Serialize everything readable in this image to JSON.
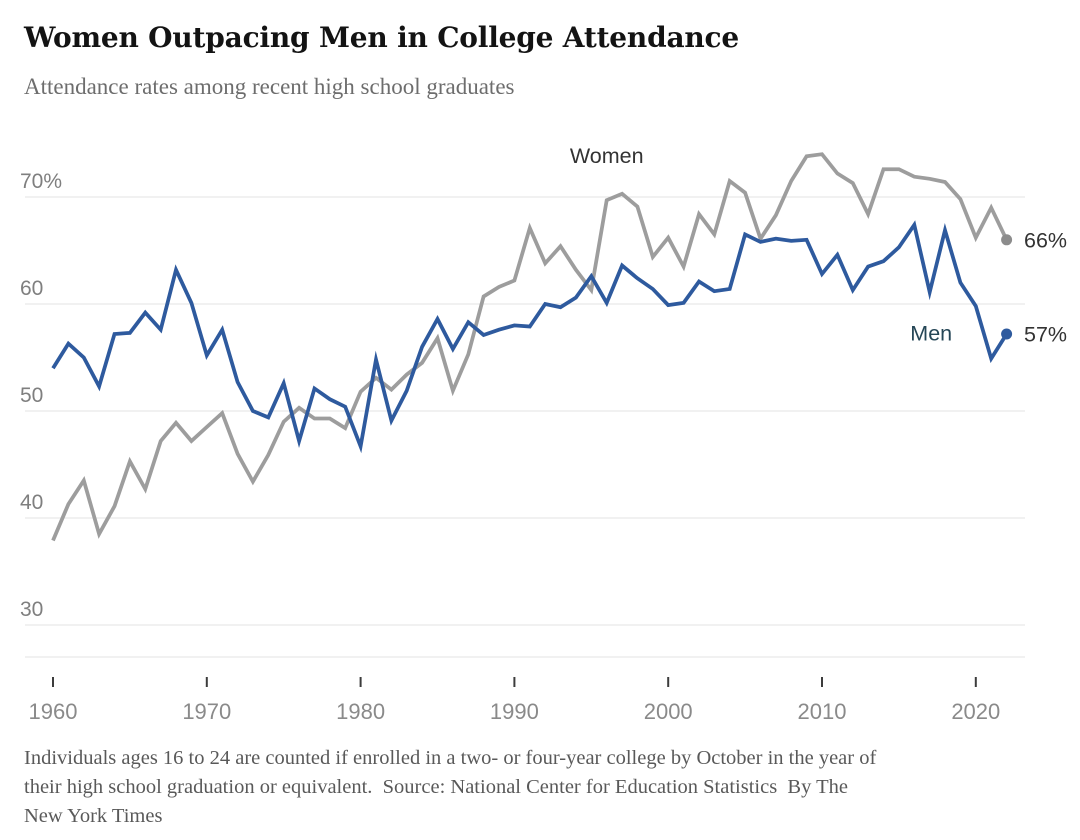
{
  "header": {
    "title": "Women Outpacing Men in College Attendance",
    "subtitle": "Attendance rates among recent high school graduates"
  },
  "footer": {
    "caption_lines": [
      "Individuals ages 16 to 24 are counted if enrolled in a two- or four-year college by October in the year of",
      "their high school graduation or equivalent.  Source: National Center for Education Statistics  By The",
      "New York Times"
    ]
  },
  "chart_data": {
    "type": "line",
    "title": "Women Outpacing Men in College Attendance",
    "subtitle": "Attendance rates among recent high school graduates",
    "xlabel": "",
    "ylabel": "",
    "grid": true,
    "legend_position": "inline-annotations",
    "xlim": [
      1958,
      2024
    ],
    "ylim": [
      27,
      76
    ],
    "xticks": [
      1960,
      1970,
      1980,
      1990,
      2000,
      2010,
      2020
    ],
    "yticks": [
      30,
      40,
      50,
      60,
      70
    ],
    "ytick_labels": [
      "30",
      "40",
      "50",
      "60",
      "70%"
    ],
    "x": [
      1960,
      1961,
      1962,
      1963,
      1964,
      1965,
      1966,
      1967,
      1968,
      1969,
      1970,
      1971,
      1972,
      1973,
      1974,
      1975,
      1976,
      1977,
      1978,
      1979,
      1980,
      1981,
      1982,
      1983,
      1984,
      1985,
      1986,
      1987,
      1988,
      1989,
      1990,
      1991,
      1992,
      1993,
      1994,
      1995,
      1996,
      1997,
      1998,
      1999,
      2000,
      2001,
      2002,
      2003,
      2004,
      2005,
      2006,
      2007,
      2008,
      2009,
      2010,
      2011,
      2012,
      2013,
      2014,
      2015,
      2016,
      2017,
      2018,
      2019,
      2020,
      2021,
      2022
    ],
    "series": [
      {
        "name": "Women",
        "color": "#9d9d9d",
        "dot_color": "#8c8c8c",
        "end_label": "66%",
        "values": [
          37.9,
          41.3,
          43.5,
          38.5,
          41.1,
          45.3,
          42.7,
          47.2,
          48.9,
          47.2,
          48.5,
          49.8,
          46.0,
          43.4,
          45.9,
          49.0,
          50.3,
          49.3,
          49.3,
          48.4,
          51.8,
          53.1,
          52.0,
          53.4,
          54.5,
          56.8,
          51.9,
          55.3,
          60.7,
          61.6,
          62.2,
          67.1,
          63.8,
          65.4,
          63.2,
          61.3,
          69.7,
          70.3,
          69.1,
          64.4,
          66.2,
          63.5,
          68.4,
          66.5,
          71.5,
          70.4,
          66.1,
          68.3,
          71.5,
          73.8,
          74.0,
          72.2,
          71.3,
          68.4,
          72.6,
          72.6,
          71.9,
          71.7,
          71.4,
          69.8,
          66.2,
          69.0,
          66.0
        ]
      },
      {
        "name": "Men",
        "color": "#2e5a9e",
        "dot_color": "#2e5a9e",
        "end_label": "57%",
        "values": [
          54.0,
          56.3,
          55.0,
          52.3,
          57.2,
          57.3,
          59.2,
          57.6,
          63.2,
          60.1,
          55.2,
          57.6,
          52.7,
          50.0,
          49.4,
          52.6,
          47.2,
          52.1,
          51.1,
          50.4,
          46.7,
          54.8,
          49.1,
          51.9,
          56.0,
          58.6,
          55.8,
          58.3,
          57.1,
          57.6,
          58.0,
          57.9,
          60.0,
          59.7,
          60.6,
          62.6,
          60.1,
          63.6,
          62.4,
          61.4,
          59.9,
          60.1,
          62.1,
          61.2,
          61.4,
          66.5,
          65.8,
          66.1,
          65.9,
          66.0,
          62.8,
          64.6,
          61.3,
          63.5,
          64.0,
          65.3,
          67.4,
          61.1,
          66.9,
          62.0,
          59.8,
          54.9,
          57.2
        ]
      }
    ],
    "annotations": [
      {
        "text": "Women",
        "year": 1996.0,
        "value": 73.2,
        "color": "#333333"
      },
      {
        "text": "Men",
        "year": 2017.1,
        "value": 56.6,
        "color": "#254656"
      }
    ],
    "colors": {
      "grid": "#e3e3e3",
      "baseline": "#e3e3e3",
      "y_axis_label": "#7f7f7f",
      "x_tick_label": "#8a8a8a",
      "x_tick_mark": "#3c3c3c",
      "end_value_label": "#333333"
    }
  }
}
